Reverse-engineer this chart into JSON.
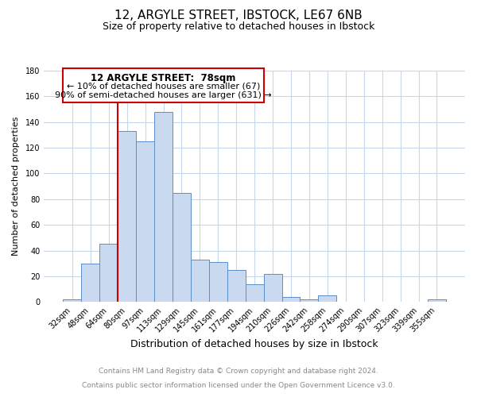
{
  "title": "12, ARGYLE STREET, IBSTOCK, LE67 6NB",
  "subtitle": "Size of property relative to detached houses in Ibstock",
  "xlabel": "Distribution of detached houses by size in Ibstock",
  "ylabel": "Number of detached properties",
  "footer_line1": "Contains HM Land Registry data © Crown copyright and database right 2024.",
  "footer_line2": "Contains public sector information licensed under the Open Government Licence v3.0.",
  "bin_labels": [
    "32sqm",
    "48sqm",
    "64sqm",
    "80sqm",
    "97sqm",
    "113sqm",
    "129sqm",
    "145sqm",
    "161sqm",
    "177sqm",
    "194sqm",
    "210sqm",
    "226sqm",
    "242sqm",
    "258sqm",
    "274sqm",
    "290sqm",
    "307sqm",
    "323sqm",
    "339sqm",
    "355sqm"
  ],
  "bar_heights": [
    2,
    30,
    45,
    133,
    125,
    148,
    85,
    33,
    31,
    25,
    14,
    22,
    4,
    2,
    5,
    0,
    0,
    0,
    0,
    0,
    2
  ],
  "bar_color": "#c9d9f0",
  "bar_edge_color": "#5a8fc7",
  "ylim": [
    0,
    180
  ],
  "yticks": [
    0,
    20,
    40,
    60,
    80,
    100,
    120,
    140,
    160,
    180
  ],
  "vline_color": "#cc0000",
  "annotation_title": "12 ARGYLE STREET:  78sqm",
  "annotation_line1": "← 10% of detached houses are smaller (67)",
  "annotation_line2": "90% of semi-detached houses are larger (631) →",
  "background_color": "#ffffff",
  "grid_color": "#c8d8ec",
  "title_fontsize": 11,
  "subtitle_fontsize": 9,
  "xlabel_fontsize": 9,
  "ylabel_fontsize": 8,
  "tick_fontsize": 7,
  "footer_fontsize": 6.5,
  "footer_color": "#888888"
}
